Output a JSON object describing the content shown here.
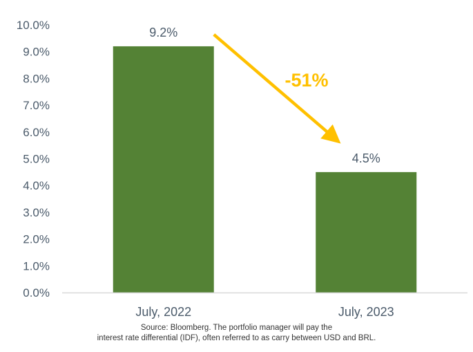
{
  "chart_data": {
    "type": "bar",
    "categories": [
      "July, 2022",
      "July, 2023"
    ],
    "values": [
      9.2,
      4.5
    ],
    "data_labels": [
      "9.2%",
      "4.5%"
    ],
    "ylim": [
      0,
      10
    ],
    "yticks": [
      0,
      1,
      2,
      3,
      4,
      5,
      6,
      7,
      8,
      9,
      10
    ],
    "ytick_labels": [
      "0.0%",
      "1.0%",
      "2.0%",
      "3.0%",
      "4.0%",
      "5.0%",
      "6.0%",
      "7.0%",
      "8.0%",
      "9.0%",
      "10.0%"
    ],
    "grid": false,
    "legend": "none",
    "annotation": {
      "text": "-51%",
      "kind": "arrow from first bar to second bar"
    },
    "colors": {
      "bar": "#548235",
      "arrow": "#ffc000",
      "annotation_text": "#ffc000",
      "axis": "#d9d9d9",
      "text": "#4a5a6a"
    }
  },
  "footnote": {
    "line1": "Source: Bloomberg. The portfolio manager will pay the",
    "line2": "interest rate differential (IDF), often referred to as carry between USD and BRL."
  }
}
